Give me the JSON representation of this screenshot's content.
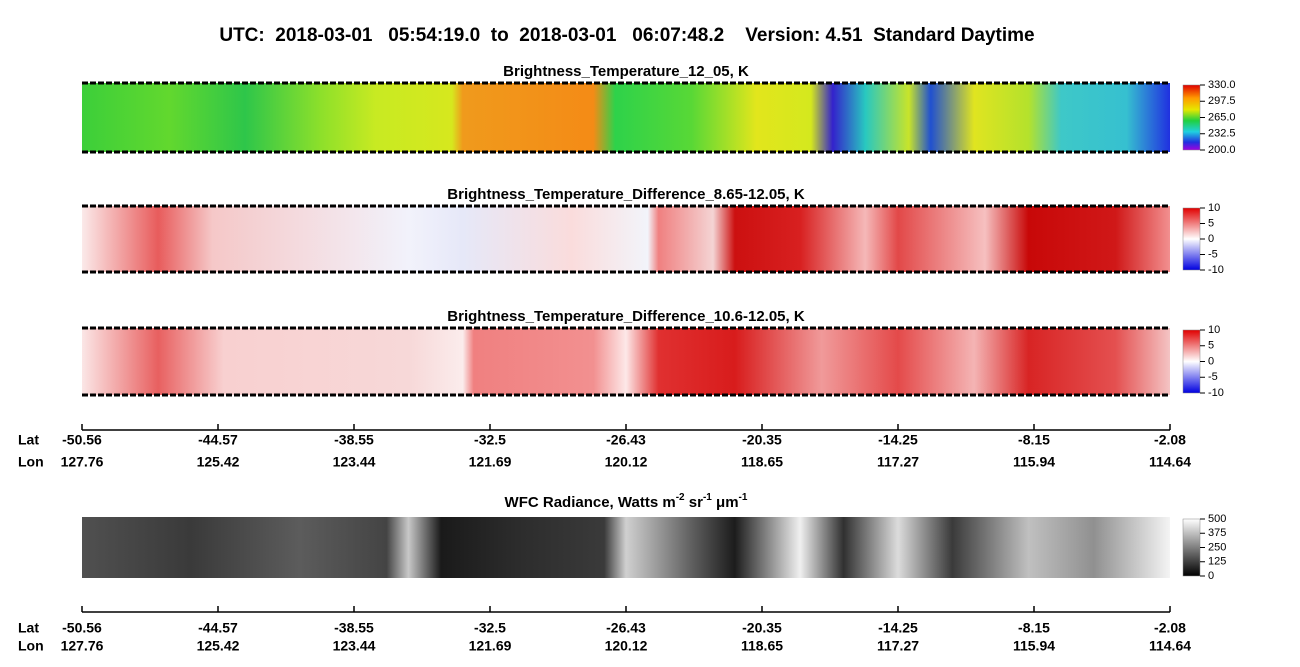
{
  "title": "UTC:  2018-03-01   05:54:19.0  to  2018-03-01   06:07:48.2    Version: 4.51  Standard Daytime",
  "chart_data": [
    {
      "type": "heatmap",
      "title": "Brightness_Temperature_12_05, K",
      "colormap": "rainbow",
      "clim": [
        200,
        330
      ],
      "cticks": [
        {
          "value": 330,
          "label": "330.0"
        },
        {
          "value": 297.5,
          "label": "297.5"
        },
        {
          "value": 265,
          "label": "265.0"
        },
        {
          "value": 232.5,
          "label": "232.5"
        },
        {
          "value": 200,
          "label": "200.0"
        }
      ]
    },
    {
      "type": "heatmap",
      "title": "Brightness_Temperature_Difference_8.65-12.05, K",
      "colormap": "diverging",
      "clim": [
        -10,
        10
      ],
      "cticks": [
        10,
        5,
        0,
        -5,
        -10
      ]
    },
    {
      "type": "heatmap",
      "title": "Brightness_Temperature_Difference_10.6-12.05, K",
      "colormap": "diverging",
      "clim": [
        -10,
        10
      ],
      "cticks": [
        10,
        5,
        0,
        -5,
        -10
      ]
    },
    {
      "type": "heatmap",
      "title_parts": [
        "WFC Radiance, Watts m",
        "-2",
        " sr",
        "-1",
        " μm",
        "-1"
      ],
      "colormap": "gray",
      "clim": [
        0,
        500
      ],
      "cticks": [
        500,
        375,
        250,
        125,
        0
      ]
    }
  ],
  "axes": [
    {
      "lat_label": "Lat",
      "lon_label": "Lon",
      "lat": [
        -50.56,
        -44.57,
        -38.55,
        -32.5,
        -26.43,
        -20.35,
        -14.25,
        -8.15,
        -2.08
      ],
      "lon": [
        127.76,
        125.42,
        123.44,
        121.69,
        120.12,
        118.65,
        117.27,
        115.94,
        114.64
      ]
    },
    {
      "lat_label": "Lat",
      "lon_label": "Lon",
      "lat": [
        -50.56,
        -44.57,
        -38.55,
        -32.5,
        -26.43,
        -20.35,
        -14.25,
        -8.15,
        -2.08
      ],
      "lon": [
        127.76,
        125.42,
        123.44,
        121.69,
        120.12,
        118.65,
        117.27,
        115.94,
        114.64
      ]
    }
  ]
}
